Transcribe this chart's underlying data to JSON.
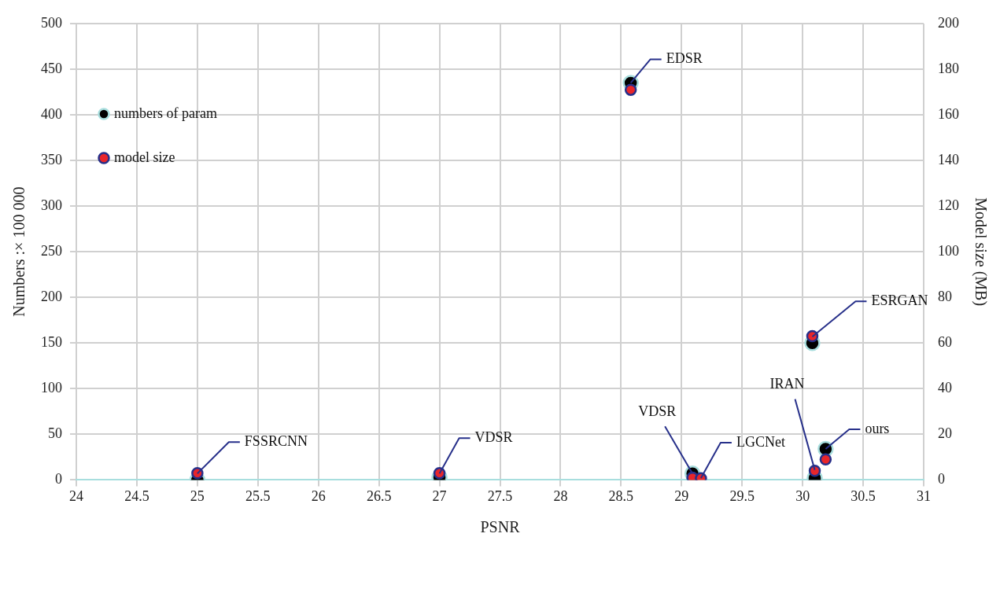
{
  "chart_data": {
    "type": "scatter",
    "xlabel": "PSNR",
    "ylabel": "Numbers :× 100 000",
    "y2label": "Model size (MB)",
    "x": [
      25,
      27,
      28.58,
      30.08,
      29.09,
      29.16,
      30.1,
      30.19
    ],
    "series": [
      {
        "name": "numbers of param",
        "color": "#000000",
        "values": [
          0,
          3,
          435,
          150,
          7,
          null,
          2,
          34
        ]
      },
      {
        "name": "model size",
        "color": "#e8262b",
        "axis": "y2",
        "values": [
          3,
          3,
          171,
          63,
          1,
          0.7,
          4,
          9
        ]
      }
    ],
    "xlim": [
      24,
      31
    ],
    "xticks": [
      24,
      24.5,
      25,
      25.5,
      26,
      26.5,
      27,
      27.5,
      28,
      28.5,
      29,
      29.5,
      30,
      30.5,
      31
    ],
    "ylim": [
      0,
      500
    ],
    "yticks": [
      0,
      50,
      100,
      150,
      200,
      250,
      300,
      350,
      400,
      450,
      500
    ],
    "y2lim": [
      0,
      200
    ],
    "y2ticks": [
      0,
      20,
      40,
      60,
      80,
      100,
      120,
      140,
      160,
      180,
      200
    ],
    "annotations": [
      {
        "text": "FSSRCNN",
        "x": 25,
        "y": 7
      },
      {
        "text": "VDSR",
        "x": 27,
        "y": 7
      },
      {
        "text": "EDSR",
        "x": 28.58,
        "y": 435
      },
      {
        "text": "ESRGAN",
        "x": 30.08,
        "y": 157
      },
      {
        "text": "VDSR",
        "x": 29.09,
        "y": 7
      },
      {
        "text": "LGCNet",
        "x": 29.16,
        "y": 2
      },
      {
        "text": "IRAN",
        "x": 30.1,
        "y": 11
      },
      {
        "text": "ours",
        "x": 30.19,
        "y": 34
      }
    ],
    "grid": true,
    "legend": "top left",
    "marker": "circle"
  }
}
